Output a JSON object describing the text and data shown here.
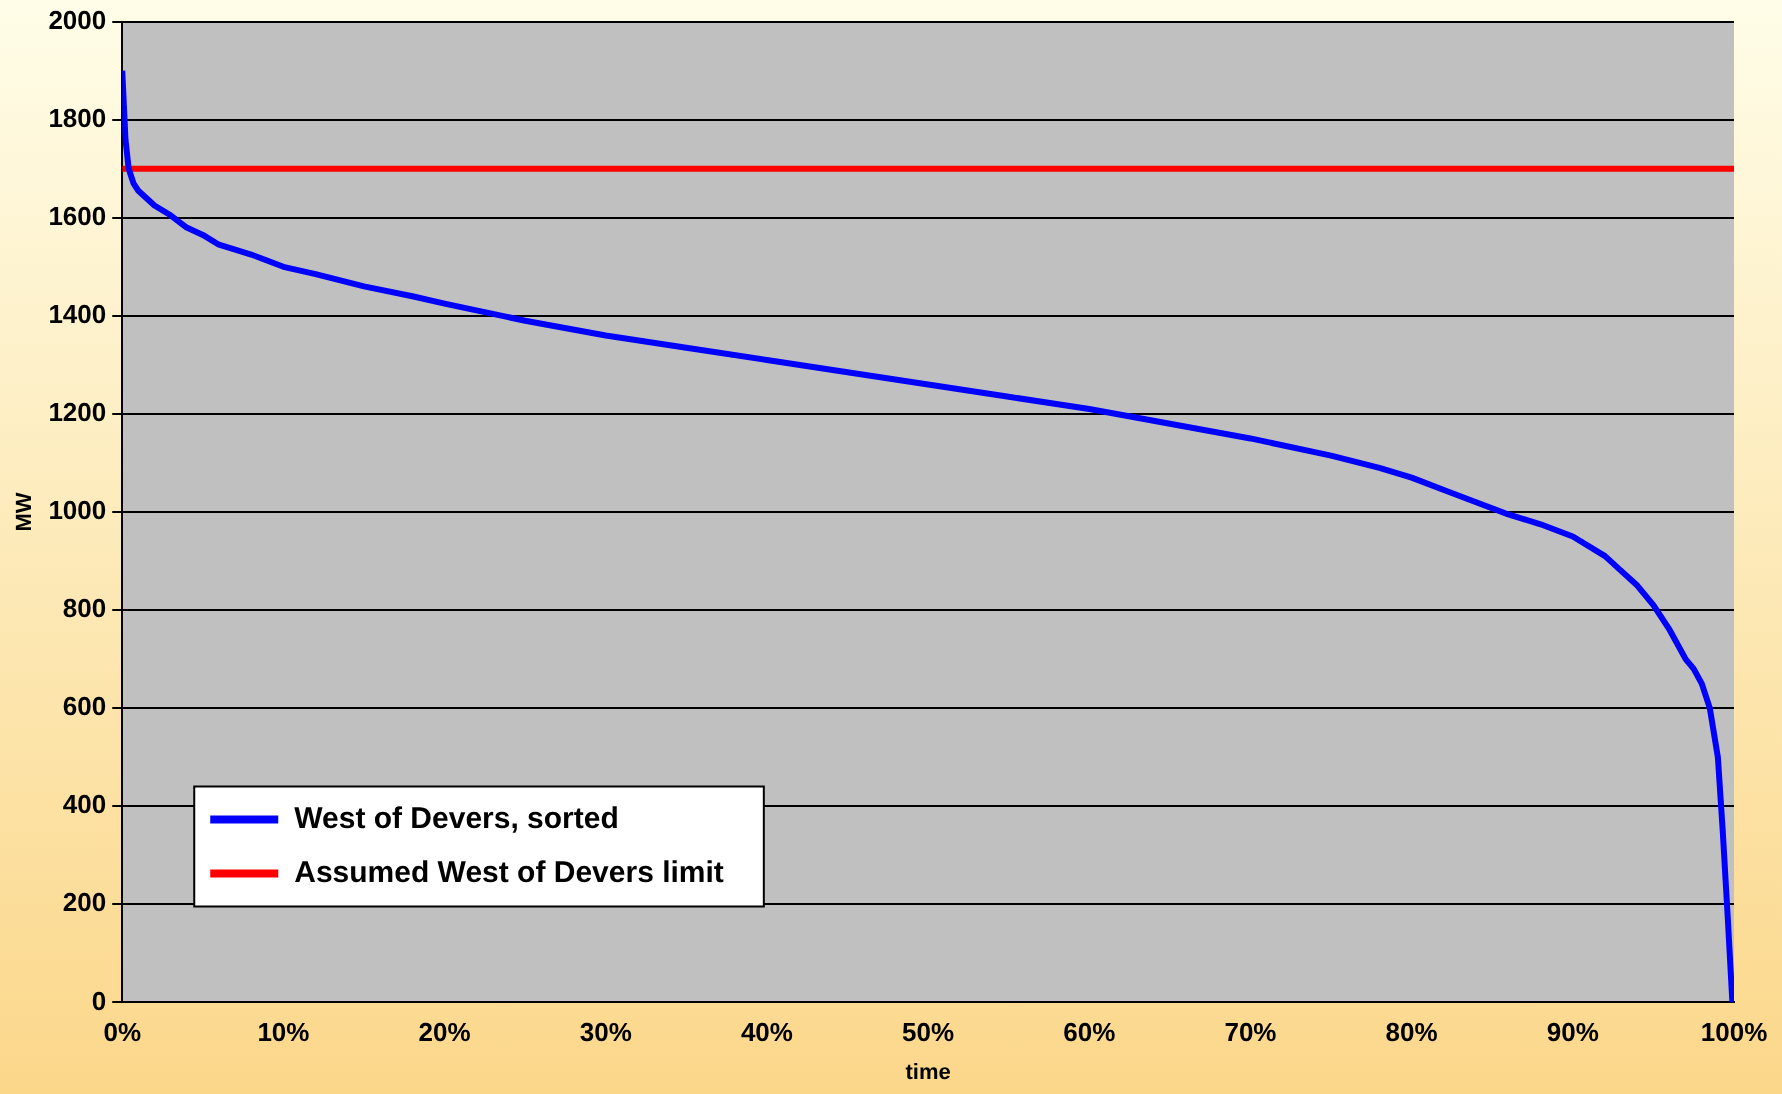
{
  "chart_data": {
    "type": "line",
    "xlabel": "time",
    "ylabel": "MW",
    "xlim": [
      0,
      100
    ],
    "xticks": [
      {
        "value": 0,
        "label": "0%"
      },
      {
        "value": 10,
        "label": "10%"
      },
      {
        "value": 20,
        "label": "20%"
      },
      {
        "value": 30,
        "label": "30%"
      },
      {
        "value": 40,
        "label": "40%"
      },
      {
        "value": 50,
        "label": "50%"
      },
      {
        "value": 60,
        "label": "60%"
      },
      {
        "value": 70,
        "label": "70%"
      },
      {
        "value": 80,
        "label": "80%"
      },
      {
        "value": 90,
        "label": "90%"
      },
      {
        "value": 100,
        "label": "100%"
      }
    ],
    "ylim": [
      0,
      2000
    ],
    "yticks": [
      0,
      200,
      400,
      600,
      800,
      1000,
      1200,
      1400,
      1600,
      1800,
      2000
    ],
    "grid": "y",
    "legend": "bottom left",
    "marker": "none",
    "line_style": "solid",
    "series": [
      {
        "name": "West of Devers, sorted",
        "color": "#0000ff",
        "x": [
          0,
          0.2,
          0.4,
          0.7,
          1,
          2,
          3,
          4,
          5,
          6,
          8,
          10,
          12,
          15,
          18,
          20,
          25,
          30,
          35,
          40,
          45,
          50,
          55,
          60,
          65,
          70,
          75,
          78,
          80,
          82,
          84,
          86,
          88,
          90,
          92,
          93,
          94,
          95,
          96,
          97,
          97.5,
          98,
          98.5,
          99,
          99.3,
          99.6,
          99.9
        ],
        "values": [
          1900,
          1760,
          1700,
          1670,
          1655,
          1625,
          1605,
          1580,
          1565,
          1545,
          1525,
          1500,
          1485,
          1460,
          1440,
          1425,
          1390,
          1360,
          1335,
          1310,
          1285,
          1260,
          1235,
          1210,
          1180,
          1150,
          1115,
          1090,
          1070,
          1045,
          1020,
          995,
          975,
          950,
          910,
          880,
          850,
          810,
          760,
          700,
          680,
          650,
          600,
          500,
          350,
          180,
          0
        ]
      },
      {
        "name": "Assumed West of Devers limit",
        "color": "#ff0000",
        "x": [
          0,
          100
        ],
        "values": [
          1700,
          1700
        ]
      }
    ]
  }
}
